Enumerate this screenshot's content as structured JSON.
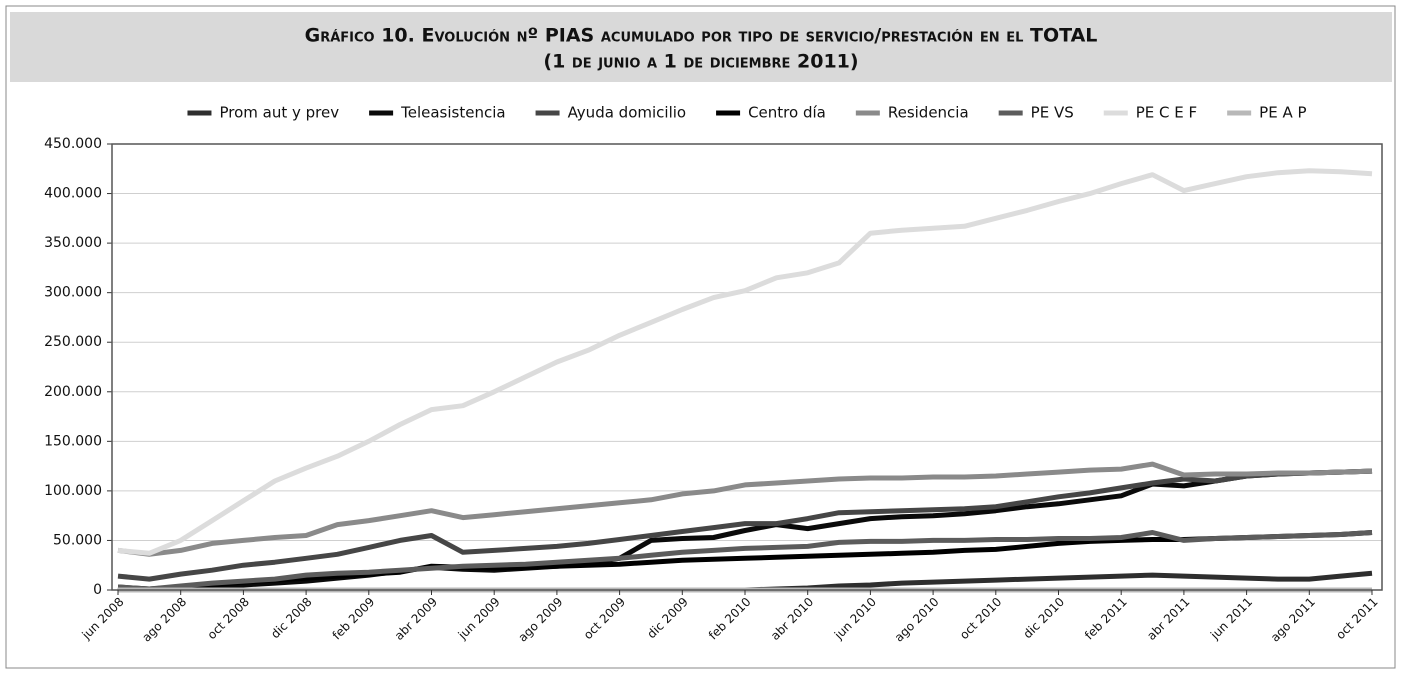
{
  "chart_data": {
    "type": "line",
    "title": "Gráfico 10. Evolución nº PIAS acumulado por tipo de servicio/prestación en el TOTAL",
    "subtitle": "(1 de junio a 1 de diciembre 2011)",
    "categories": [
      "jun 2008",
      null,
      "ago 2008",
      null,
      "oct 2008",
      null,
      "dic 2008",
      null,
      "feb 2009",
      null,
      "abr 2009",
      null,
      "jun 2009",
      null,
      "ago 2009",
      null,
      "oct 2009",
      null,
      "dic 2009",
      null,
      "feb 2010",
      null,
      "abr 2010",
      null,
      "jun 2010",
      null,
      "ago 2010",
      null,
      "oct 2010",
      null,
      "dic 2010",
      null,
      "feb 2011",
      null,
      "abr 2011",
      null,
      "jun 2011",
      null,
      "ago 2011",
      null,
      "oct 2011"
    ],
    "ylim": [
      0,
      450000
    ],
    "yticks": [
      0,
      {
        "value": 50000,
        "label": "50.000"
      },
      {
        "value": 100000,
        "label": "100.000"
      },
      {
        "value": 150000,
        "label": "150.000"
      },
      {
        "value": 200000,
        "label": "200.000"
      },
      {
        "value": 250000,
        "label": "250.000"
      },
      {
        "value": 300000,
        "label": "300.000"
      },
      {
        "value": 350000,
        "label": "350.000"
      },
      {
        "value": 400000,
        "label": "400.000"
      },
      {
        "value": 450000,
        "label": "450.000"
      }
    ],
    "grid": true,
    "legend": "top",
    "series": [
      {
        "name": "Prom aut y prev",
        "color": "#2e2e2e",
        "values": [
          0,
          0,
          0,
          0,
          0,
          0,
          0,
          0,
          0,
          0,
          0,
          0,
          0,
          0,
          0,
          0,
          0,
          0,
          0,
          0,
          0,
          1000,
          2000,
          4000,
          5000,
          7000,
          8000,
          9000,
          10000,
          11000,
          12000,
          13000,
          14000,
          15000,
          14000,
          13000,
          12000,
          11000,
          11000,
          14000,
          17000
        ]
      },
      {
        "name": "Teleasistencia",
        "color": "#0a0a0a",
        "values": [
          3000,
          1000,
          3000,
          4000,
          5000,
          7000,
          9000,
          12000,
          15000,
          19000,
          23000,
          21000,
          20000,
          22000,
          24000,
          27000,
          32000,
          50000,
          52000,
          53000,
          60000,
          66000,
          62000,
          67000,
          72000,
          74000,
          75000,
          77000,
          80000,
          84000,
          87000,
          91000,
          95000,
          107000,
          105000,
          110000,
          115000,
          117000,
          118000,
          119000,
          120000
        ]
      },
      {
        "name": "Ayuda domicilio",
        "color": "#464646",
        "values": [
          14000,
          11000,
          16000,
          20000,
          25000,
          28000,
          32000,
          36000,
          43000,
          50000,
          55000,
          38000,
          40000,
          42000,
          44000,
          47000,
          51000,
          55000,
          59000,
          63000,
          67000,
          67000,
          72000,
          78000,
          79000,
          80000,
          81000,
          82000,
          84000,
          89000,
          94000,
          98000,
          103000,
          108000,
          112000,
          110000,
          115000,
          117000,
          118000,
          119000,
          120000
        ]
      },
      {
        "name": "Centro día",
        "color": "#000000",
        "values": [
          2000,
          0,
          3000,
          5000,
          8000,
          10000,
          12000,
          14000,
          16000,
          18000,
          24000,
          23000,
          22000,
          23000,
          24000,
          25000,
          26000,
          28000,
          30000,
          31000,
          32000,
          33000,
          34000,
          35000,
          36000,
          37000,
          38000,
          40000,
          41000,
          44000,
          47000,
          49000,
          50000,
          51000,
          51000,
          52000,
          53000,
          54000,
          55000,
          56000,
          58000
        ]
      },
      {
        "name": "Residencia",
        "color": "#8a8a8a",
        "values": [
          40000,
          36000,
          40000,
          47000,
          50000,
          53000,
          55000,
          66000,
          70000,
          75000,
          80000,
          73000,
          76000,
          79000,
          82000,
          85000,
          88000,
          91000,
          97000,
          100000,
          106000,
          108000,
          110000,
          112000,
          113000,
          113000,
          114000,
          114000,
          115000,
          117000,
          119000,
          121000,
          122000,
          127000,
          116000,
          117000,
          117000,
          118000,
          118000,
          119000,
          120000
        ]
      },
      {
        "name": "PE VS",
        "color": "#5c5c5c",
        "values": [
          3000,
          1000,
          4000,
          7000,
          9000,
          11000,
          15000,
          17000,
          18000,
          20000,
          22000,
          24000,
          25000,
          26000,
          28000,
          30000,
          32000,
          35000,
          38000,
          40000,
          42000,
          43000,
          44000,
          48000,
          49000,
          49000,
          50000,
          50000,
          51000,
          51000,
          52000,
          52000,
          53000,
          58000,
          50000,
          52000,
          53000,
          54000,
          55000,
          56000,
          58000
        ]
      },
      {
        "name": "PE C E F",
        "color": "#dcdcdc",
        "values": [
          40000,
          37000,
          50000,
          70000,
          90000,
          110000,
          123000,
          135000,
          150000,
          167000,
          182000,
          186000,
          200000,
          215000,
          230000,
          242000,
          257000,
          270000,
          283000,
          295000,
          302000,
          315000,
          320000,
          330000,
          360000,
          363000,
          365000,
          367000,
          375000,
          383000,
          392000,
          400000,
          410000,
          419000,
          403000,
          410000,
          417000,
          421000,
          423000,
          422000,
          420000
        ]
      },
      {
        "name": "PE A P",
        "color": "#b8b8b8",
        "values": [
          0,
          0,
          0,
          0,
          0,
          0,
          0,
          0,
          0,
          0,
          0,
          0,
          0,
          0,
          0,
          0,
          0,
          0,
          0,
          0,
          0,
          0,
          0,
          0,
          0,
          0,
          0,
          0,
          0,
          0,
          0,
          0,
          0,
          0,
          0,
          0,
          0,
          0,
          0,
          0,
          0
        ]
      }
    ]
  }
}
